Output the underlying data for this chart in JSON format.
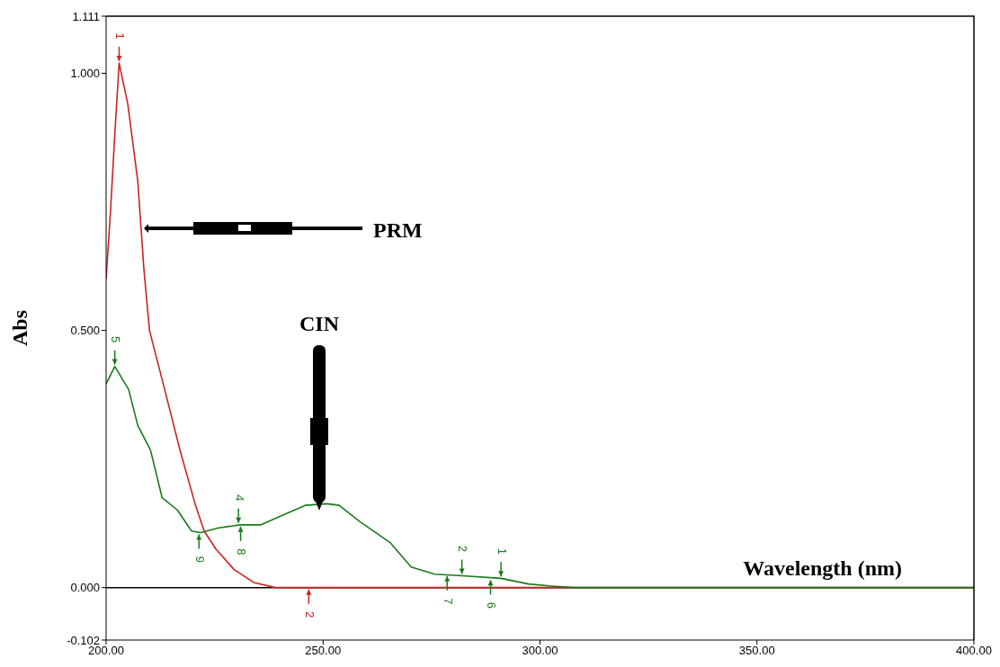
{
  "chart_data": {
    "type": "line",
    "xlabel": "Wavelength (nm)",
    "ylabel": "Abs",
    "xlim": [
      200,
      400
    ],
    "xticks": [
      {
        "value": 200,
        "label": "200.00"
      },
      {
        "value": 250,
        "label": "250.00"
      },
      {
        "value": 300,
        "label": "300.00"
      },
      {
        "value": 350,
        "label": "350.00"
      },
      {
        "value": 400,
        "label": "400.00"
      }
    ],
    "ylim": [
      -0.102,
      1.111
    ],
    "yticks": [
      {
        "value": -0.102,
        "label": "-0.102"
      },
      {
        "value": 0,
        "label": "0.000"
      },
      {
        "value": 0.5,
        "label": "0.500"
      },
      {
        "value": 1,
        "label": "1.000"
      },
      1.111
    ],
    "ref_lines": [
      {
        "axis": "y",
        "value": 0,
        "color": "#000000"
      }
    ],
    "series": [
      {
        "color": "#cc2222",
        "x": [
          200,
          201,
          202,
          203,
          205,
          207.3,
          208.7,
          210,
          213.5,
          217,
          220.5,
          222.6,
          225.3,
          229.5,
          234,
          239,
          300,
          400
        ],
        "values": [
          0.6,
          0.73,
          0.88,
          1.02,
          0.94,
          0.79,
          0.62,
          0.5,
          0.385,
          0.268,
          0.163,
          0.11,
          0.075,
          0.035,
          0.01,
          0,
          0,
          0
        ]
      },
      {
        "color": "#1a7a1a",
        "x": [
          200,
          202,
          205.2,
          207.3,
          210.2,
          212.9,
          216.4,
          219.7,
          221.8,
          225.9,
          230.9,
          235.7,
          240.5,
          246,
          250.8,
          253.7,
          258.5,
          265.4,
          270.3,
          275.7,
          282,
          291,
          297.3,
          302.7,
          308,
          400
        ],
        "values": [
          0.396,
          0.43,
          0.385,
          0.315,
          0.268,
          0.175,
          0.151,
          0.11,
          0.107,
          0.116,
          0.122,
          0.122,
          0.14,
          0.16,
          0.163,
          0.16,
          0.128,
          0.088,
          0.04,
          0.026,
          0.023,
          0.018,
          0.007,
          0.003,
          0,
          0
        ]
      }
    ],
    "annotations": [
      "PRM",
      "CIN",
      {
        "text": "1",
        "x": 203,
        "y": 1.02
      },
      {
        "text": "2",
        "x": 246.7,
        "y": 0
      },
      {
        "text": "5",
        "x": 202,
        "y": 0.43
      },
      {
        "text": "4",
        "x": 230.5,
        "y": 0.122
      },
      {
        "text": "8",
        "x": 231,
        "y": 0.122
      },
      {
        "text": "9",
        "x": 221.4,
        "y": 0.107
      },
      {
        "text": "2",
        "x": 282,
        "y": 0.023
      },
      {
        "text": "1",
        "x": 291,
        "y": 0.018
      },
      {
        "text": "7",
        "x": 278.6,
        "y": 0.026
      },
      {
        "text": "6",
        "x": 288.6,
        "y": 0.018
      }
    ]
  }
}
